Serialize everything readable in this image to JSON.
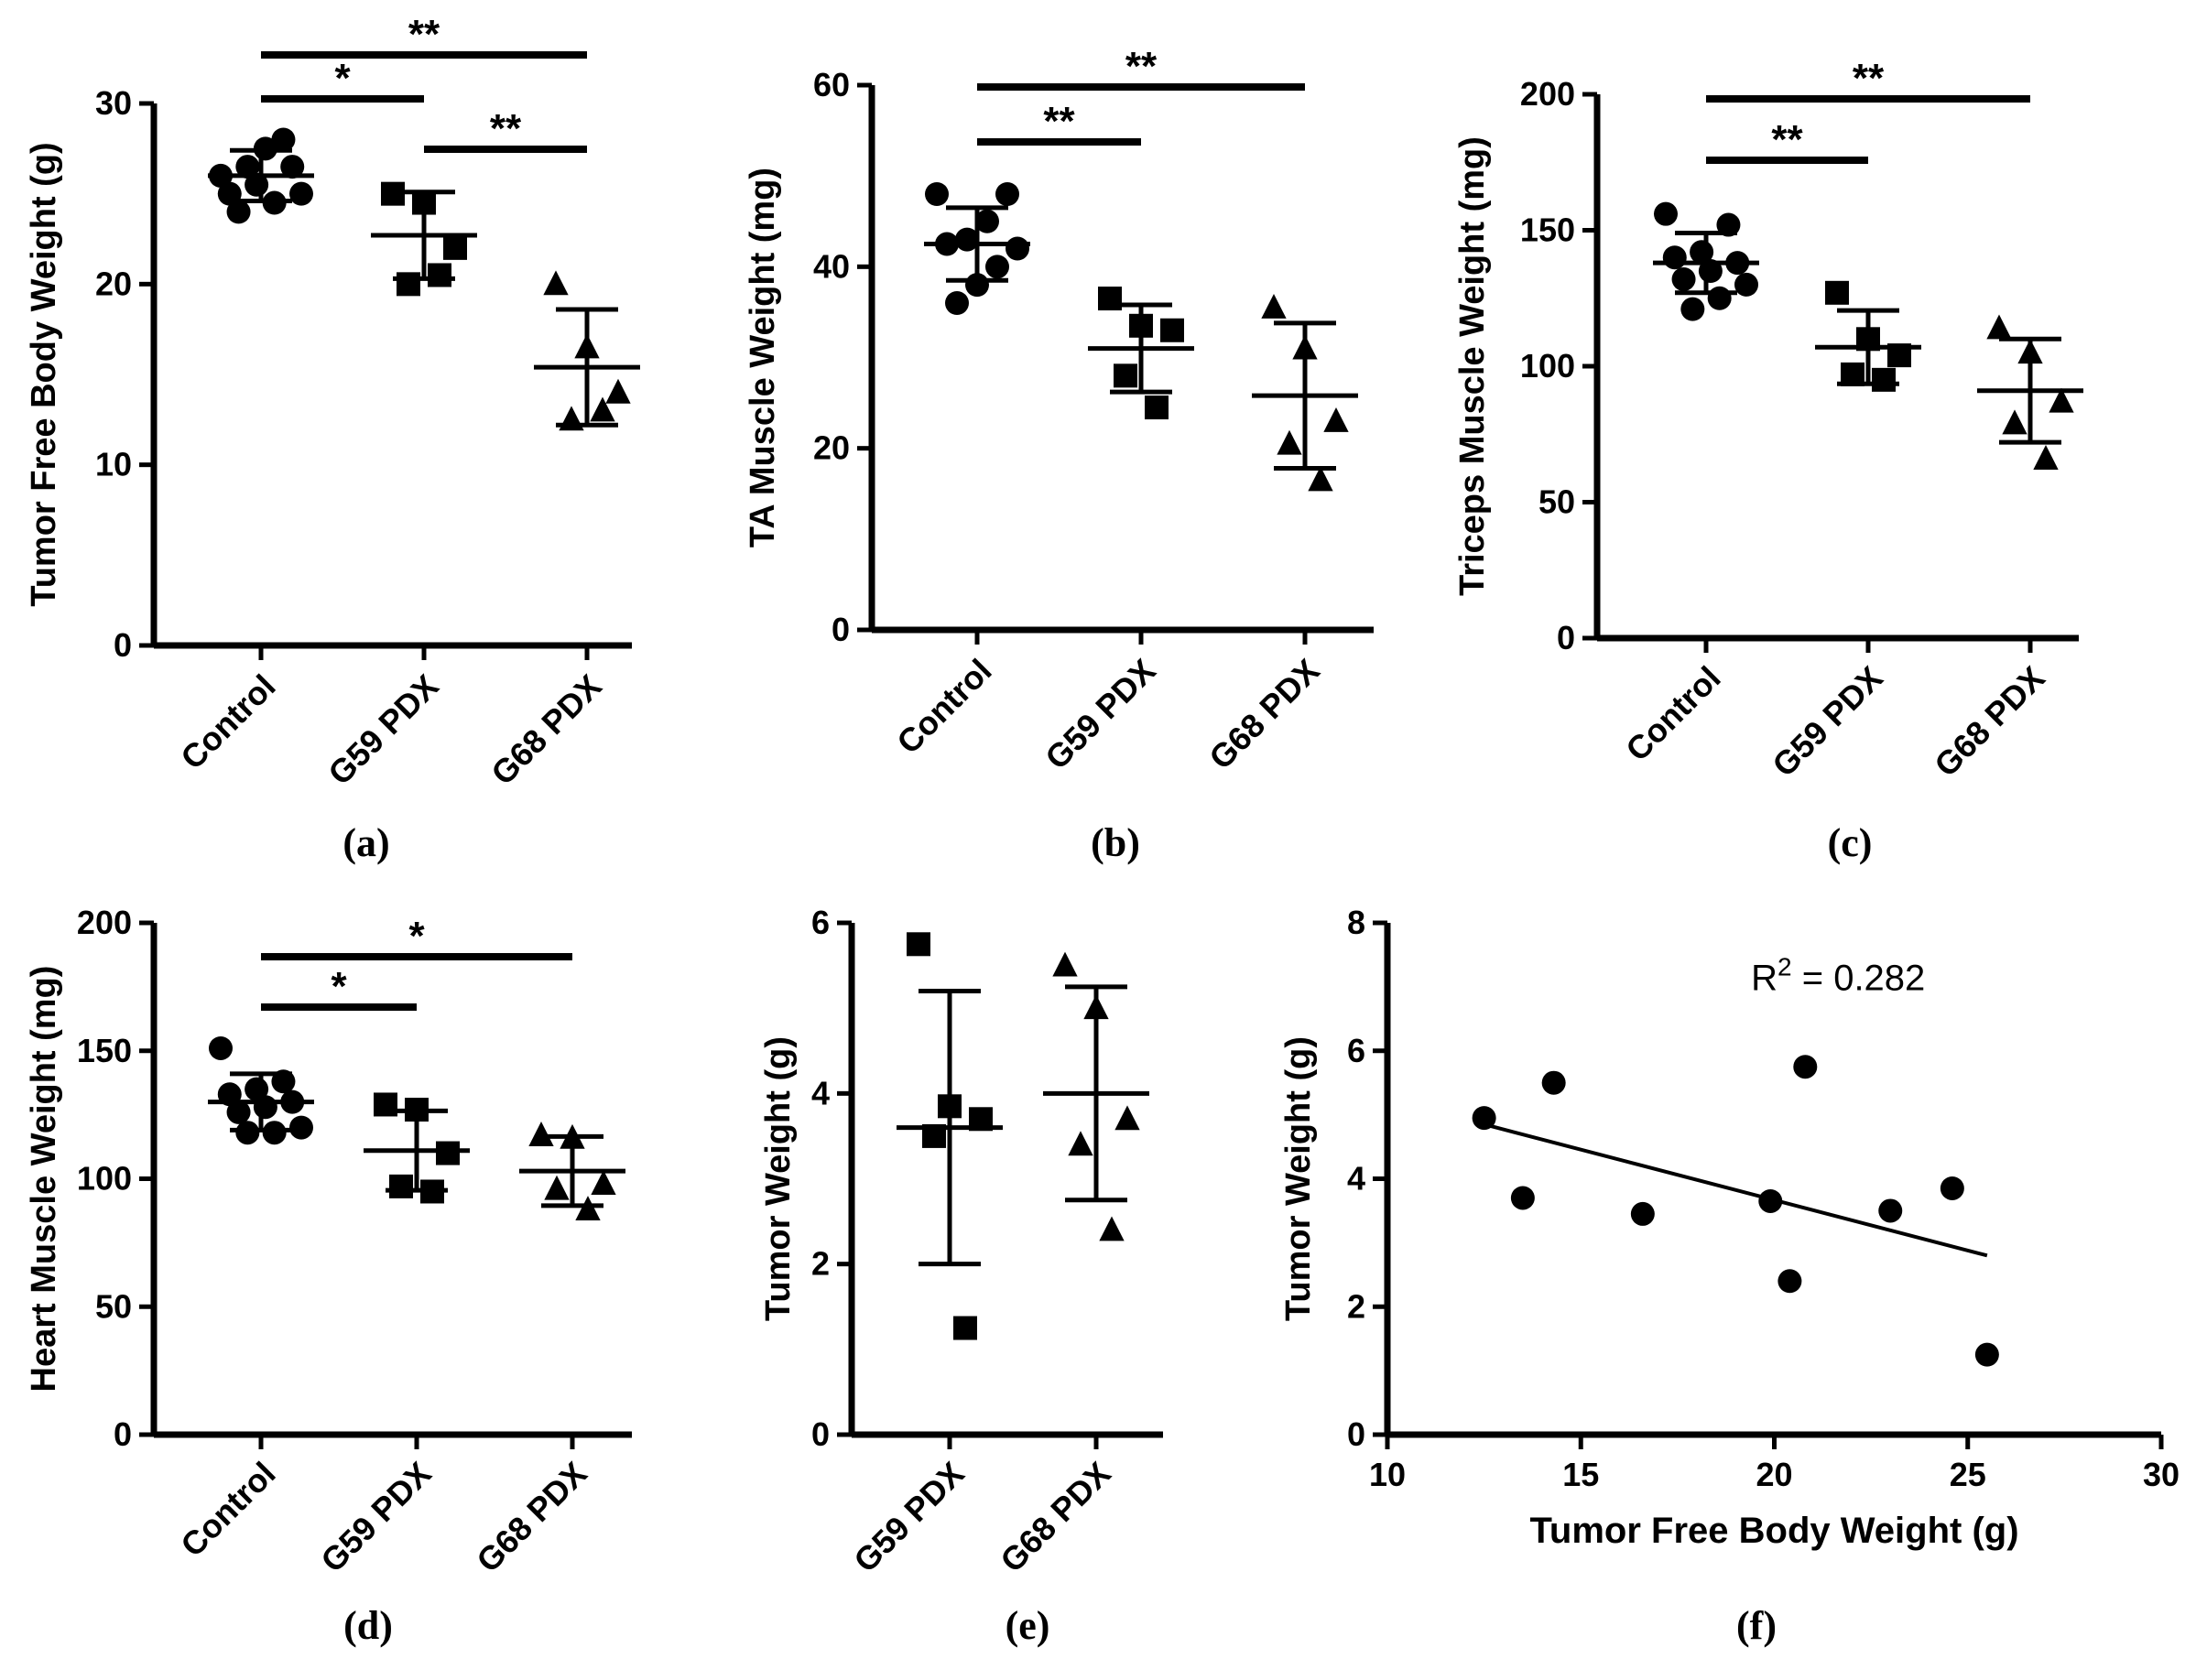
{
  "chart_data": [
    {
      "id": "a",
      "type": "scatter",
      "panel_label": "(a)",
      "ylabel": "Tumor Free Body Weight (g)",
      "ylim": [
        0,
        30
      ],
      "yticks": [
        0,
        10,
        20,
        30
      ],
      "categories": [
        "Control",
        "G59 PDX",
        "G68 PDX"
      ],
      "marker_shapes": [
        "circle",
        "square",
        "triangle"
      ],
      "groups": [
        {
          "category": "Control",
          "points": [
            26.0,
            28.0,
            25.5,
            25.0,
            26.5,
            27.5,
            24.0,
            25.0,
            24.5,
            26.5
          ],
          "mean": 26.0,
          "sd": 1.4
        },
        {
          "category": "G59 PDX",
          "points": [
            25.0,
            24.5,
            22.0,
            20.0,
            20.5
          ],
          "mean": 22.7,
          "sd": 2.4
        },
        {
          "category": "G68 PDX",
          "points": [
            20.0,
            16.5,
            14.0,
            12.5,
            13.0
          ],
          "mean": 15.4,
          "sd": 3.2
        }
      ],
      "significance": [
        {
          "from": 0,
          "to": 1,
          "label": "*"
        },
        {
          "from": 1,
          "to": 2,
          "label": "**"
        },
        {
          "from": 0,
          "to": 2,
          "label": "**"
        }
      ]
    },
    {
      "id": "b",
      "type": "scatter",
      "panel_label": "(b)",
      "ylabel": "TA Muscle Weight (mg)",
      "ylim": [
        0,
        60
      ],
      "yticks": [
        0,
        20,
        40,
        60
      ],
      "categories": [
        "Control",
        "G59 PDX",
        "G68 PDX"
      ],
      "marker_shapes": [
        "circle",
        "square",
        "triangle"
      ],
      "groups": [
        {
          "category": "Control",
          "points": [
            48.0,
            48.0,
            45.0,
            43.0,
            42.5,
            42.0,
            40.0,
            38.0,
            36.0
          ],
          "mean": 42.5,
          "sd": 4.0
        },
        {
          "category": "G59 PDX",
          "points": [
            36.5,
            33.5,
            33.0,
            28.0,
            24.5
          ],
          "mean": 31.0,
          "sd": 4.8
        },
        {
          "category": "G68 PDX",
          "points": [
            35.5,
            31.0,
            23.0,
            20.5,
            16.5
          ],
          "mean": 25.8,
          "sd": 8.0
        }
      ],
      "significance": [
        {
          "from": 0,
          "to": 1,
          "label": "**"
        },
        {
          "from": 0,
          "to": 2,
          "label": "**"
        }
      ]
    },
    {
      "id": "c",
      "type": "scatter",
      "panel_label": "(c)",
      "ylabel": "Triceps Muscle Weight (mg)",
      "ylim": [
        0,
        200
      ],
      "yticks": [
        0,
        50,
        100,
        150,
        200
      ],
      "categories": [
        "Control",
        "G59 PDX",
        "G68 PDX"
      ],
      "marker_shapes": [
        "circle",
        "square",
        "triangle"
      ],
      "groups": [
        {
          "category": "Control",
          "points": [
            156.0,
            152.0,
            142.0,
            140.0,
            138.0,
            135.0,
            132.0,
            130.0,
            125.0,
            121.0
          ],
          "mean": 138.0,
          "sd": 11.0
        },
        {
          "category": "G59 PDX",
          "points": [
            127.0,
            110.0,
            104.0,
            97.0,
            95.0
          ],
          "mean": 107.0,
          "sd": 13.5
        },
        {
          "category": "G68 PDX",
          "points": [
            114.0,
            105.0,
            87.0,
            79.0,
            66.0
          ],
          "mean": 91.0,
          "sd": 19.0
        }
      ],
      "significance": [
        {
          "from": 0,
          "to": 1,
          "label": "**"
        },
        {
          "from": 0,
          "to": 2,
          "label": "**"
        }
      ]
    },
    {
      "id": "d",
      "type": "scatter",
      "panel_label": "(d)",
      "ylabel": "Heart Muscle Weight (mg)",
      "ylim": [
        0,
        200
      ],
      "yticks": [
        0,
        50,
        100,
        150,
        200
      ],
      "categories": [
        "Control",
        "G59 PDX",
        "G68 PDX"
      ],
      "marker_shapes": [
        "circle",
        "square",
        "triangle"
      ],
      "groups": [
        {
          "category": "Control",
          "points": [
            151.0,
            138.0,
            135.0,
            133.0,
            130.0,
            128.0,
            126.0,
            120.0,
            118.0,
            118.0
          ],
          "mean": 130.0,
          "sd": 11.0
        },
        {
          "category": "G59 PDX",
          "points": [
            129.0,
            127.0,
            110.0,
            97.0,
            95.0
          ],
          "mean": 111.0,
          "sd": 15.5
        },
        {
          "category": "G68 PDX",
          "points": [
            117.0,
            116.0,
            98.0,
            96.0,
            88.0
          ],
          "mean": 103.0,
          "sd": 13.5
        }
      ],
      "significance": [
        {
          "from": 0,
          "to": 1,
          "label": "*"
        },
        {
          "from": 0,
          "to": 2,
          "label": "*"
        }
      ]
    },
    {
      "id": "e",
      "type": "scatter",
      "panel_label": "(e)",
      "ylabel": "Tumor  Weight (g)",
      "ylim": [
        0,
        6
      ],
      "yticks": [
        0,
        2,
        4,
        6
      ],
      "categories": [
        "G59 PDX",
        "G68 PDX"
      ],
      "marker_shapes": [
        "square",
        "triangle"
      ],
      "groups": [
        {
          "category": "G59 PDX",
          "points": [
            5.75,
            3.85,
            3.7,
            3.5,
            1.25
          ],
          "mean": 3.6,
          "sd": 1.6
        },
        {
          "category": "G68 PDX",
          "points": [
            5.5,
            5.0,
            3.7,
            3.4,
            2.4
          ],
          "mean": 4.0,
          "sd": 1.25
        }
      ],
      "significance": []
    },
    {
      "id": "f",
      "type": "scatter",
      "panel_label": "(f)",
      "xlabel": "Tumor Free Body Weight (g)",
      "ylabel": "Tumor Weight (g)",
      "xlim": [
        10,
        30
      ],
      "ylim": [
        0,
        8
      ],
      "xticks": [
        10,
        15,
        20,
        25,
        30
      ],
      "yticks": [
        0,
        2,
        4,
        6,
        8
      ],
      "points": [
        {
          "x": 12.5,
          "y": 4.95
        },
        {
          "x": 13.5,
          "y": 3.7
        },
        {
          "x": 14.3,
          "y": 5.5
        },
        {
          "x": 16.6,
          "y": 3.45
        },
        {
          "x": 19.9,
          "y": 3.65
        },
        {
          "x": 20.4,
          "y": 2.4
        },
        {
          "x": 20.8,
          "y": 5.75
        },
        {
          "x": 23.0,
          "y": 3.5
        },
        {
          "x": 24.6,
          "y": 3.85
        },
        {
          "x": 25.5,
          "y": 1.25
        }
      ],
      "fit": {
        "x": [
          12.5,
          25.5
        ],
        "y": [
          4.85,
          2.8
        ]
      },
      "annotation": {
        "prefix": "R",
        "sup": "2",
        "suffix": " = 0.282"
      }
    }
  ]
}
